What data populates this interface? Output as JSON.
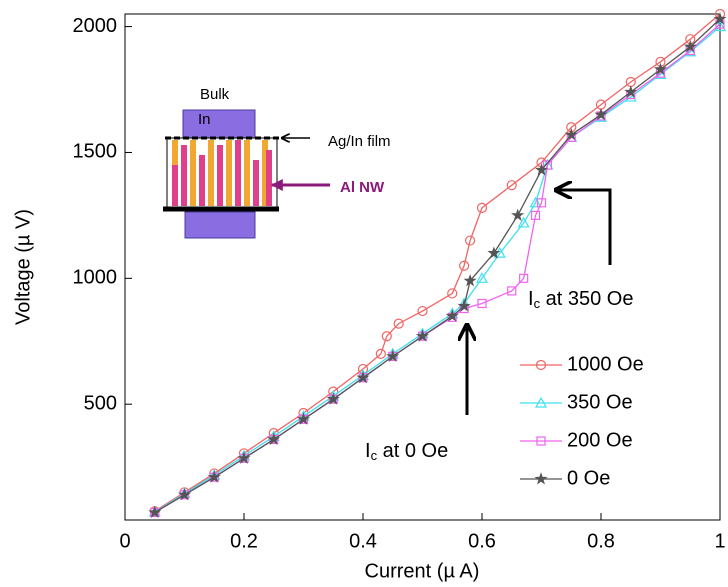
{
  "chart_data": {
    "type": "line",
    "xlabel": "Current (µ A)",
    "ylabel": "Voltage (µ V)",
    "xlim": [
      0,
      1
    ],
    "ylim": [
      40,
      2050
    ],
    "xticks": [
      0,
      0.2,
      0.4,
      0.6,
      0.8,
      1
    ],
    "yticks": [
      500,
      1000,
      1500,
      2000
    ],
    "legend": "lower right",
    "series": [
      {
        "name": "1000 Oe",
        "color": "#f06464",
        "marker": "circle",
        "x": [
          0.05,
          0.1,
          0.15,
          0.2,
          0.25,
          0.3,
          0.35,
          0.4,
          0.43,
          0.44,
          0.46,
          0.5,
          0.55,
          0.57,
          0.58,
          0.6,
          0.65,
          0.7,
          0.75,
          0.8,
          0.85,
          0.9,
          0.95,
          1.0
        ],
        "values": [
          75,
          150,
          225,
          305,
          385,
          465,
          550,
          640,
          700,
          770,
          820,
          870,
          940,
          1050,
          1150,
          1280,
          1370,
          1460,
          1600,
          1690,
          1780,
          1860,
          1950,
          2050
        ]
      },
      {
        "name": "350 Oe",
        "color": "#3ee0f0",
        "marker": "triangle",
        "x": [
          0.05,
          0.1,
          0.15,
          0.2,
          0.25,
          0.3,
          0.35,
          0.4,
          0.45,
          0.5,
          0.55,
          0.57,
          0.6,
          0.63,
          0.67,
          0.69,
          0.71,
          0.75,
          0.8,
          0.85,
          0.9,
          0.95,
          1.0
        ],
        "values": [
          72,
          145,
          218,
          295,
          372,
          452,
          532,
          615,
          700,
          780,
          860,
          900,
          1000,
          1100,
          1220,
          1300,
          1450,
          1560,
          1640,
          1720,
          1810,
          1900,
          2000
        ]
      },
      {
        "name": "200 Oe",
        "color": "#f064f0",
        "marker": "square",
        "x": [
          0.05,
          0.1,
          0.15,
          0.2,
          0.25,
          0.3,
          0.35,
          0.4,
          0.45,
          0.5,
          0.55,
          0.57,
          0.6,
          0.65,
          0.67,
          0.69,
          0.7,
          0.71,
          0.75,
          0.8,
          0.85,
          0.9,
          0.95,
          1.0
        ],
        "values": [
          70,
          140,
          210,
          285,
          360,
          440,
          520,
          605,
          690,
          770,
          845,
          880,
          900,
          950,
          1000,
          1250,
          1300,
          1450,
          1560,
          1645,
          1730,
          1815,
          1905,
          2010
        ]
      },
      {
        "name": "0 Oe",
        "color": "#555555",
        "marker": "star",
        "x": [
          0.05,
          0.1,
          0.15,
          0.2,
          0.25,
          0.3,
          0.35,
          0.4,
          0.45,
          0.5,
          0.55,
          0.57,
          0.58,
          0.62,
          0.66,
          0.7,
          0.75,
          0.8,
          0.85,
          0.9,
          0.95,
          1.0
        ],
        "values": [
          70,
          140,
          210,
          285,
          360,
          440,
          520,
          605,
          690,
          770,
          850,
          890,
          990,
          1100,
          1250,
          1430,
          1570,
          1650,
          1740,
          1830,
          1920,
          2030
        ]
      }
    ],
    "annotations": [
      {
        "main": "I",
        "sub": "c",
        "rest": " at 0 Oe"
      },
      {
        "main": "I",
        "sub": "c",
        "rest": " at 350 Oe"
      }
    ],
    "inset_labels": {
      "bulk": "Bulk",
      "in": "In",
      "film": "Ag/In film",
      "nw": "Al NW"
    }
  }
}
